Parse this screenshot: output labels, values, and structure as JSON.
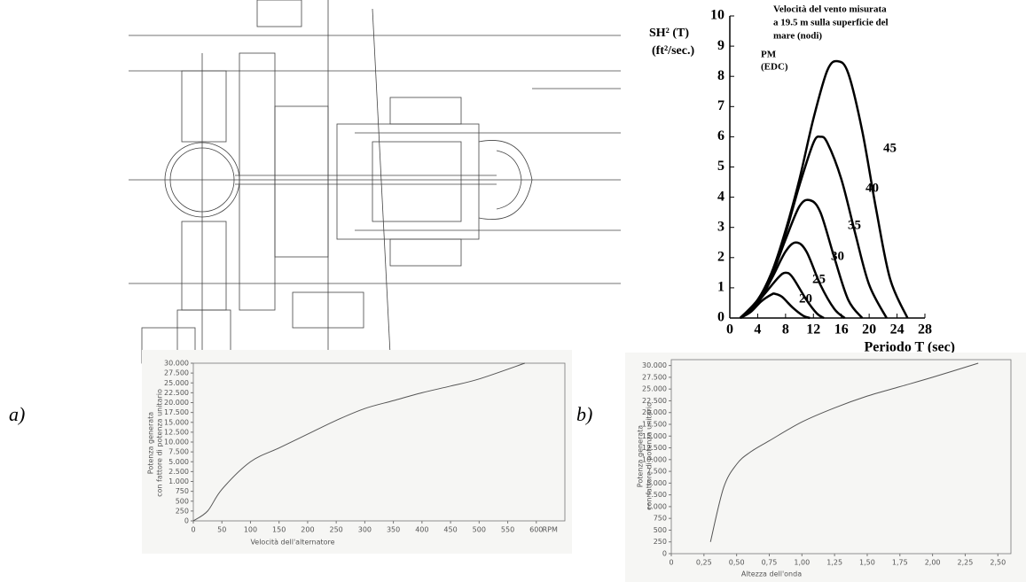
{
  "panel_labels": [
    "a)",
    "b)"
  ],
  "chart_data": [
    {
      "type": "line",
      "y_label": [
        "SH² (T)",
        "(ft²/sec.)"
      ],
      "x_label": "Periodo T (sec)",
      "annotations": [
        [
          "Velocità del vento misurata",
          "a 19.5 m sulla superficie del",
          "mare (nodi)"
        ],
        [
          "PM",
          "(EDC)"
        ]
      ],
      "xlim": [
        0,
        28
      ],
      "xticks": [
        0,
        4,
        8,
        12,
        16,
        20,
        24,
        28
      ],
      "ylim": [
        0,
        10
      ],
      "yticks": [
        0,
        1,
        2,
        3,
        4,
        5,
        6,
        7,
        8,
        9,
        10
      ],
      "series": [
        {
          "name": "20",
          "color": "#000000",
          "x": [
            1.5,
            3,
            4.5,
            6,
            6.5,
            7.5,
            9,
            10.5,
            11.5
          ],
          "values": [
            0,
            0.2,
            0.55,
            0.78,
            0.8,
            0.7,
            0.35,
            0.08,
            0
          ]
        },
        {
          "name": "25",
          "color": "#000000",
          "x": [
            1.5,
            3,
            5,
            7,
            8,
            9,
            11,
            12.5,
            13.5
          ],
          "values": [
            0,
            0.25,
            0.8,
            1.35,
            1.5,
            1.35,
            0.6,
            0.15,
            0
          ]
        },
        {
          "name": "30",
          "color": "#000000",
          "x": [
            1.5,
            4,
            6,
            8,
            9.5,
            11,
            13,
            15,
            16.5
          ],
          "values": [
            0,
            0.5,
            1.3,
            2.2,
            2.5,
            2.2,
            1.1,
            0.3,
            0
          ]
        },
        {
          "name": "35",
          "color": "#000000",
          "x": [
            1.5,
            4,
            6,
            8,
            10,
            11.5,
            13,
            15,
            17,
            19
          ],
          "values": [
            0,
            0.6,
            1.4,
            2.6,
            3.7,
            3.9,
            3.5,
            2.0,
            0.6,
            0
          ]
        },
        {
          "name": "40",
          "color": "#000000",
          "x": [
            1.5,
            4,
            6,
            8,
            10,
            12,
            13,
            14,
            16,
            18,
            20,
            22.5
          ],
          "values": [
            0,
            0.6,
            1.5,
            2.8,
            4.4,
            5.8,
            6.0,
            5.8,
            4.6,
            2.8,
            1.1,
            0
          ]
        },
        {
          "name": "45",
          "color": "#000000",
          "x": [
            1.5,
            4,
            6,
            8,
            10,
            12,
            14,
            15.5,
            17,
            19,
            21,
            23,
            25.5
          ],
          "values": [
            0,
            0.6,
            1.5,
            2.9,
            4.6,
            6.6,
            8.2,
            8.5,
            8.1,
            6.2,
            3.6,
            1.3,
            0
          ]
        }
      ]
    },
    {
      "type": "line",
      "y_label": [
        "Potenza generata",
        "con fattore di potenza unitario"
      ],
      "x_label": "Velocità dell'alternatore",
      "x_unit": "RPM",
      "xlim": [
        0,
        650
      ],
      "xticks": [
        0,
        50,
        100,
        150,
        200,
        250,
        300,
        350,
        400,
        450,
        500,
        550,
        600
      ],
      "ylim": [
        0,
        30000
      ],
      "yscale": "piecewise",
      "yticks": [
        0,
        250,
        500,
        750,
        {
          "value": 1000,
          "label": "1.000"
        },
        {
          "value": 2500,
          "label": "2.500"
        },
        {
          "value": 5000,
          "label": "5.000"
        },
        {
          "value": 7500,
          "label": "7.500"
        },
        {
          "value": 10000,
          "label": "10.000"
        },
        {
          "value": 12500,
          "label": "12.500"
        },
        {
          "value": 15000,
          "label": "15.000"
        },
        {
          "value": 17500,
          "label": "17.500"
        },
        {
          "value": 20000,
          "label": "20.000"
        },
        {
          "value": 22500,
          "label": "22.500"
        },
        {
          "value": 25000,
          "label": "25.000"
        },
        {
          "value": 27500,
          "label": "27.500"
        },
        {
          "value": 30000,
          "label": "30.000"
        }
      ],
      "series": [
        {
          "color": "#555555",
          "x": [
            0,
            25,
            50,
            100,
            150,
            200,
            250,
            300,
            350,
            400,
            450,
            500,
            580
          ],
          "values": [
            0,
            250,
            800,
            5000,
            8500,
            12000,
            15500,
            18500,
            20500,
            22500,
            24200,
            26000,
            30000
          ]
        }
      ]
    },
    {
      "type": "line",
      "y_label": [
        "Potenza generata",
        "con fattore di potenza unitario"
      ],
      "x_label": "Altezza dell'onda",
      "xlim": [
        0,
        2.6
      ],
      "xticks": [
        0,
        {
          "value": 0.25,
          "label": "0,25"
        },
        {
          "value": 0.5,
          "label": "0,50"
        },
        {
          "value": 0.75,
          "label": "0,75"
        },
        {
          "value": 1,
          "label": "1,00"
        },
        {
          "value": 1.25,
          "label": "1,25"
        },
        {
          "value": 1.5,
          "label": "1,50"
        },
        {
          "value": 1.75,
          "label": "1,75"
        },
        {
          "value": 2,
          "label": "2,00"
        },
        {
          "value": 2.25,
          "label": "2,25"
        },
        {
          "value": 2.5,
          "label": "2,50"
        }
      ],
      "ylim": [
        0,
        31250
      ],
      "yscale": "piecewise",
      "yticks": [
        0,
        250,
        500,
        750,
        {
          "value": 1000,
          "label": "1.000"
        },
        {
          "value": 2500,
          "label": "2.500"
        },
        {
          "value": 5000,
          "label": "5.000"
        },
        {
          "value": 7500,
          "label": "7.500"
        },
        {
          "value": 10000,
          "label": "10.000"
        },
        {
          "value": 12500,
          "label": "12.500"
        },
        {
          "value": 15000,
          "label": "15.000"
        },
        {
          "value": 17500,
          "label": "17.500"
        },
        {
          "value": 20000,
          "label": "20.000"
        },
        {
          "value": 22500,
          "label": "22.500"
        },
        {
          "value": 25000,
          "label": "25.000"
        },
        {
          "value": 27500,
          "label": "27.500"
        },
        {
          "value": 30000,
          "label": "30.000"
        }
      ],
      "series": [
        {
          "color": "#555555",
          "x": [
            0.3,
            0.4,
            0.5,
            0.6,
            0.75,
            1.0,
            1.25,
            1.5,
            1.75,
            2.0,
            2.35
          ],
          "values": [
            250,
            4000,
            9000,
            11500,
            14000,
            18000,
            21000,
            23500,
            25500,
            27500,
            30500
          ]
        }
      ]
    }
  ]
}
